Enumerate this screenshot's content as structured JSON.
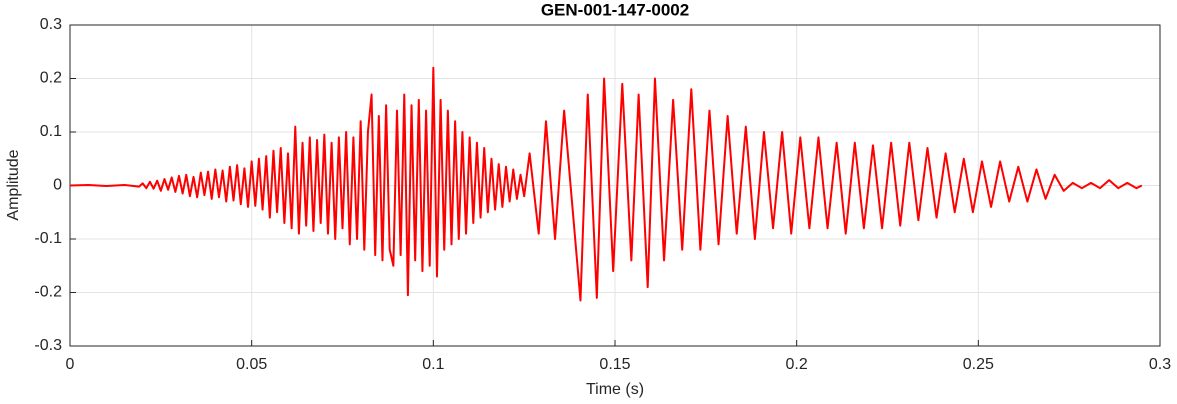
{
  "chart_data": {
    "type": "line",
    "title": "GEN-001-147-0002",
    "xlabel": "Time (s)",
    "ylabel": "Amplitude",
    "color": "#ff0000",
    "grid": true,
    "xlim": [
      0,
      0.3
    ],
    "ylim": [
      -0.3,
      0.3
    ],
    "xticks": [
      0,
      0.05,
      0.1,
      0.15,
      0.2,
      0.25,
      0.3
    ],
    "yticks": [
      -0.3,
      -0.2,
      -0.1,
      0,
      0.1,
      0.2,
      0.3
    ],
    "x": [
      0,
      0.005,
      0.01,
      0.015,
      0.019,
      0.02,
      0.021,
      0.022,
      0.023,
      0.024,
      0.025,
      0.026,
      0.027,
      0.028,
      0.029,
      0.03,
      0.031,
      0.032,
      0.033,
      0.034,
      0.035,
      0.036,
      0.037,
      0.038,
      0.039,
      0.04,
      0.041,
      0.042,
      0.043,
      0.044,
      0.045,
      0.046,
      0.047,
      0.048,
      0.049,
      0.05,
      0.051,
      0.052,
      0.053,
      0.054,
      0.055,
      0.056,
      0.057,
      0.058,
      0.059,
      0.06,
      0.061,
      0.062,
      0.063,
      0.064,
      0.065,
      0.066,
      0.067,
      0.068,
      0.069,
      0.07,
      0.071,
      0.072,
      0.073,
      0.074,
      0.075,
      0.076,
      0.077,
      0.078,
      0.079,
      0.08,
      0.081,
      0.082,
      0.083,
      0.084,
      0.085,
      0.086,
      0.087,
      0.088,
      0.089,
      0.09,
      0.091,
      0.092,
      0.093,
      0.094,
      0.095,
      0.096,
      0.097,
      0.098,
      0.099,
      0.1,
      0.101,
      0.102,
      0.103,
      0.104,
      0.105,
      0.106,
      0.107,
      0.108,
      0.109,
      0.11,
      0.111,
      0.112,
      0.113,
      0.114,
      0.115,
      0.116,
      0.117,
      0.118,
      0.119,
      0.12,
      0.121,
      0.122,
      0.123,
      0.124,
      0.125,
      0.1265,
      0.129,
      0.131,
      0.1335,
      0.136,
      0.1405,
      0.1425,
      0.145,
      0.147,
      0.1495,
      0.152,
      0.1545,
      0.1565,
      0.159,
      0.161,
      0.1635,
      0.166,
      0.1685,
      0.171,
      0.1735,
      0.176,
      0.1785,
      0.181,
      0.1835,
      0.186,
      0.1885,
      0.191,
      0.1935,
      0.196,
      0.1985,
      0.201,
      0.2035,
      0.206,
      0.2085,
      0.211,
      0.2135,
      0.216,
      0.2185,
      0.221,
      0.2235,
      0.226,
      0.2285,
      0.231,
      0.2335,
      0.236,
      0.2385,
      0.241,
      0.2435,
      0.246,
      0.2485,
      0.251,
      0.2535,
      0.256,
      0.2585,
      0.261,
      0.2635,
      0.266,
      0.2685,
      0.271,
      0.2735,
      0.276,
      0.2785,
      0.281,
      0.2835,
      0.286,
      0.2885,
      0.291,
      0.2935,
      0.295
    ],
    "values": [
      0,
      0.001,
      -0.001,
      0.001,
      -0.002,
      0.004,
      -0.005,
      0.007,
      -0.006,
      0.009,
      -0.01,
      0.012,
      -0.008,
      0.015,
      -0.012,
      0.018,
      -0.015,
      0.02,
      -0.02,
      0.016,
      -0.022,
      0.024,
      -0.018,
      0.026,
      -0.025,
      0.03,
      -0.022,
      0.028,
      -0.03,
      0.035,
      -0.028,
      0.038,
      -0.035,
      0.032,
      -0.04,
      0.045,
      -0.038,
      0.05,
      -0.045,
      0.055,
      -0.06,
      0.065,
      -0.05,
      0.07,
      -0.07,
      0.06,
      -0.08,
      0.11,
      -0.09,
      0.08,
      -0.075,
      0.09,
      -0.085,
      0.085,
      -0.07,
      0.095,
      -0.09,
      0.08,
      -0.1,
      0.09,
      -0.08,
      0.1,
      -0.11,
      0.09,
      -0.1,
      0.12,
      -0.12,
      0.1,
      0.17,
      -0.13,
      0.13,
      -0.14,
      0.15,
      -0.12,
      -0.15,
      0.14,
      -0.13,
      0.17,
      -0.205,
      0.15,
      -0.14,
      0.16,
      -0.16,
      0.14,
      -0.15,
      0.22,
      -0.17,
      0.16,
      -0.12,
      0.14,
      -0.11,
      0.12,
      -0.1,
      0.1,
      -0.09,
      0.09,
      -0.07,
      0.08,
      -0.06,
      0.07,
      -0.05,
      0.05,
      -0.045,
      0.04,
      -0.04,
      0.035,
      -0.03,
      0.03,
      -0.025,
      0.02,
      -0.02,
      0.06,
      -0.09,
      0.12,
      -0.1,
      0.14,
      -0.215,
      0.17,
      -0.21,
      0.2,
      -0.16,
      0.19,
      -0.14,
      0.17,
      -0.19,
      0.2,
      -0.14,
      0.16,
      -0.12,
      0.18,
      -0.12,
      0.14,
      -0.11,
      0.13,
      -0.09,
      0.11,
      -0.1,
      0.1,
      -0.08,
      0.1,
      -0.09,
      0.09,
      -0.08,
      0.09,
      -0.08,
      0.08,
      -0.09,
      0.08,
      -0.08,
      0.075,
      -0.08,
      0.08,
      -0.075,
      0.08,
      -0.065,
      0.07,
      -0.06,
      0.06,
      -0.05,
      0.05,
      -0.05,
      0.045,
      -0.04,
      0.045,
      -0.03,
      0.035,
      -0.03,
      0.03,
      -0.025,
      0.02,
      -0.01,
      0.005,
      -0.005,
      0.005,
      -0.005,
      0.01,
      -0.005,
      0.005,
      -0.005,
      0
    ]
  }
}
